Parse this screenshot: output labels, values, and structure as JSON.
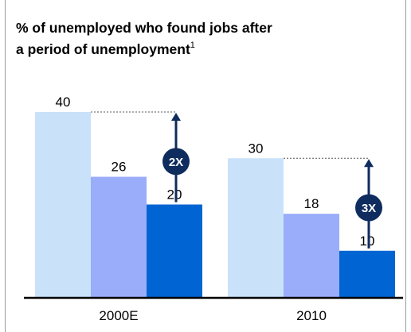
{
  "colors": {
    "series": [
      "#c9e2fa",
      "#99adfa",
      "#0064d2"
    ],
    "arrow": "#0f2c5e",
    "axis": "#000000",
    "guide": "#555555"
  },
  "chart_data": {
    "type": "bar",
    "title": "% of unemployed who found jobs after a period of unemployment",
    "title_line1": "% of unemployed who found jobs after",
    "title_line2": "a period of unemployment",
    "title_footnote": "1",
    "categories": [
      "2000E",
      "2010"
    ],
    "series": [
      {
        "values": [
          40,
          30
        ]
      },
      {
        "values": [
          26,
          18
        ]
      },
      {
        "values": [
          20,
          10
        ]
      }
    ],
    "ylim": [
      0,
      40
    ],
    "grid": false,
    "annotations": [
      {
        "category": "2000E",
        "text": "2X",
        "from_value": 20,
        "to_value": 40
      },
      {
        "category": "2010",
        "text": "3X",
        "from_value": 10,
        "to_value": 30
      }
    ]
  }
}
